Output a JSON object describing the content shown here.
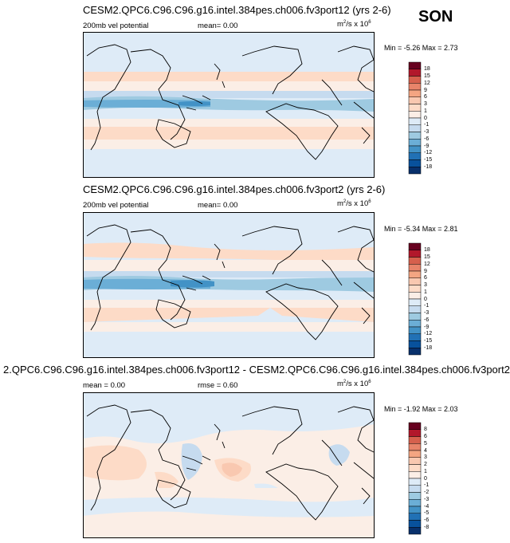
{
  "season": "SON",
  "panels": [
    {
      "title": "CESM2.QPC6.C96.C96.g16.intel.384pes.ch006.fv3port12 (yrs 2-6)",
      "left_label": "200mb vel potential",
      "center_label": "mean=  0.00",
      "units_main": "m",
      "units_sup1": "2",
      "units_mid": "/s x 10",
      "units_sup2": "6",
      "minmax": "Min = -5.26 Max =  2.73",
      "colorbar": {
        "labels": [
          "18",
          "15",
          "12",
          "9",
          "6",
          "3",
          "1",
          "0",
          "-1",
          "-3",
          "-6",
          "-9",
          "-12",
          "-15",
          "-18"
        ],
        "colors": [
          "#67001f",
          "#b2182b",
          "#d6604d",
          "#e8846a",
          "#f4a582",
          "#f9c8b0",
          "#fddbc7",
          "#fbeee6",
          "#deebf7",
          "#c6dbef",
          "#9ecae1",
          "#6baed6",
          "#4292c6",
          "#2171b5",
          "#08519c",
          "#08306b"
        ]
      }
    },
    {
      "title": "CESM2.QPC6.C96.C96.g16.intel.384pes.ch006.fv3port2 (yrs 2-6)",
      "left_label": "200mb vel potential",
      "center_label": "mean=  0.00",
      "units_main": "m",
      "units_sup1": "2",
      "units_mid": "/s x 10",
      "units_sup2": "6",
      "minmax": "Min = -5.34 Max =  2.81",
      "colorbar": {
        "labels": [
          "18",
          "15",
          "12",
          "9",
          "6",
          "3",
          "1",
          "0",
          "-1",
          "-3",
          "-6",
          "-9",
          "-12",
          "-15",
          "-18"
        ],
        "colors": [
          "#67001f",
          "#b2182b",
          "#d6604d",
          "#e8846a",
          "#f4a582",
          "#f9c8b0",
          "#fddbc7",
          "#fbeee6",
          "#deebf7",
          "#c6dbef",
          "#9ecae1",
          "#6baed6",
          "#4292c6",
          "#2171b5",
          "#08519c",
          "#08306b"
        ]
      }
    },
    {
      "title": "2.QPC6.C96.C96.g16.intel.384pes.ch006.fv3port12 - CESM2.QPC6.C96.C96.g16.intel.384pes.ch006.fv3port2",
      "left_label": "mean =  0.00",
      "center_label": "rmse =  0.60",
      "units_main": "m",
      "units_sup1": "2",
      "units_mid": "/s x 10",
      "units_sup2": "6",
      "minmax": "Min = -1.92 Max =  2.03",
      "colorbar": {
        "labels": [
          "8",
          "6",
          "5",
          "4",
          "3",
          "2",
          "1",
          "0",
          "-1",
          "-2",
          "-3",
          "-4",
          "-5",
          "-6",
          "-8"
        ],
        "colors": [
          "#67001f",
          "#b2182b",
          "#d6604d",
          "#e8846a",
          "#f4a582",
          "#f9c8b0",
          "#fddbc7",
          "#fbeee6",
          "#deebf7",
          "#c6dbef",
          "#9ecae1",
          "#6baed6",
          "#4292c6",
          "#2171b5",
          "#08519c",
          "#08306b"
        ]
      }
    }
  ]
}
